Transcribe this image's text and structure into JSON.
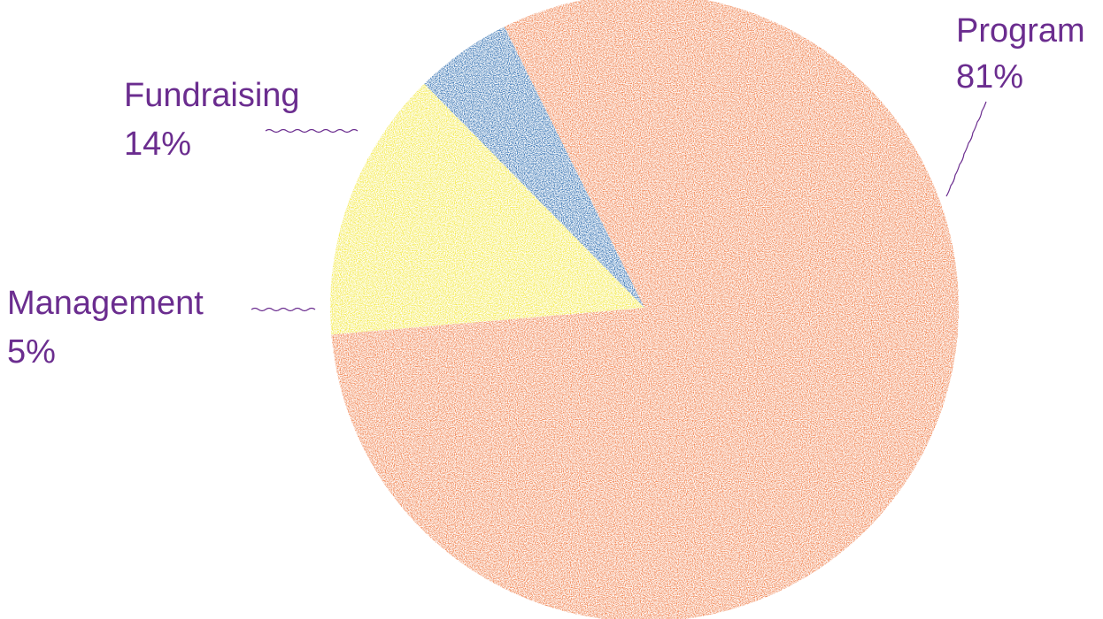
{
  "chart_data": {
    "type": "pie",
    "slices": [
      {
        "label": "Program",
        "value_label": "81%",
        "value": 81,
        "color": "#ee7238"
      },
      {
        "label": "Fundraising",
        "value_label": "14%",
        "value": 14,
        "color": "#f2e62c"
      },
      {
        "label": "Management",
        "value_label": "5%",
        "value": 5,
        "color": "#1a5fa8"
      }
    ],
    "label_color": "#6b2d8f",
    "background": "#ffffff"
  }
}
